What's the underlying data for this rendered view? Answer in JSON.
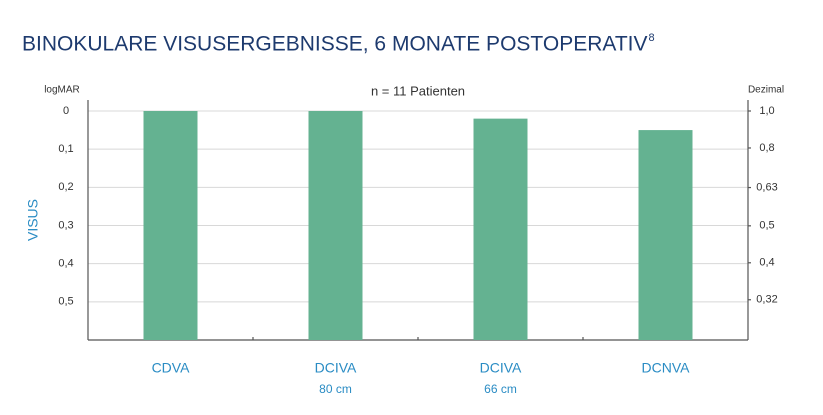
{
  "chart_data": {
    "type": "bar",
    "title": "BINOKULARE VISUSERGEBNISSE, 6 MONATE POSTOPERATIV",
    "title_note": "8",
    "subtitle": "n = 11 Patienten",
    "y_axis_title": "VISUS",
    "y_label": "logMAR",
    "y2_label": "Dezimal",
    "categories": [
      "CDVA",
      "DCIVA",
      "DCIVA",
      "DCNVA"
    ],
    "category_sublabels": [
      null,
      "80 cm",
      "66 cm",
      null
    ],
    "values": [
      0,
      0,
      0.02,
      0.05
    ],
    "color": "#64b291",
    "ylim": [
      0.6,
      0
    ],
    "yticks": [
      0,
      {
        "value": 0.1,
        "label": "0,1"
      },
      {
        "value": 0.2,
        "label": "0,2"
      },
      {
        "value": 0.3,
        "label": "0,3"
      },
      {
        "value": 0.4,
        "label": "0,4"
      },
      {
        "value": 0.5,
        "label": "0,5"
      }
    ],
    "y2lim": [
      0.251,
      1
    ],
    "y2log": true,
    "y2ticks": [
      {
        "value": 1,
        "label": "1,0"
      },
      {
        "value": 0.8,
        "label": "0,8"
      },
      {
        "value": 0.63,
        "label": "0,63"
      },
      {
        "value": 0.5,
        "label": "0,5"
      },
      {
        "value": 0.4,
        "label": "0,4"
      },
      {
        "value": 0.32,
        "label": "0,32"
      }
    ],
    "grid": true
  }
}
